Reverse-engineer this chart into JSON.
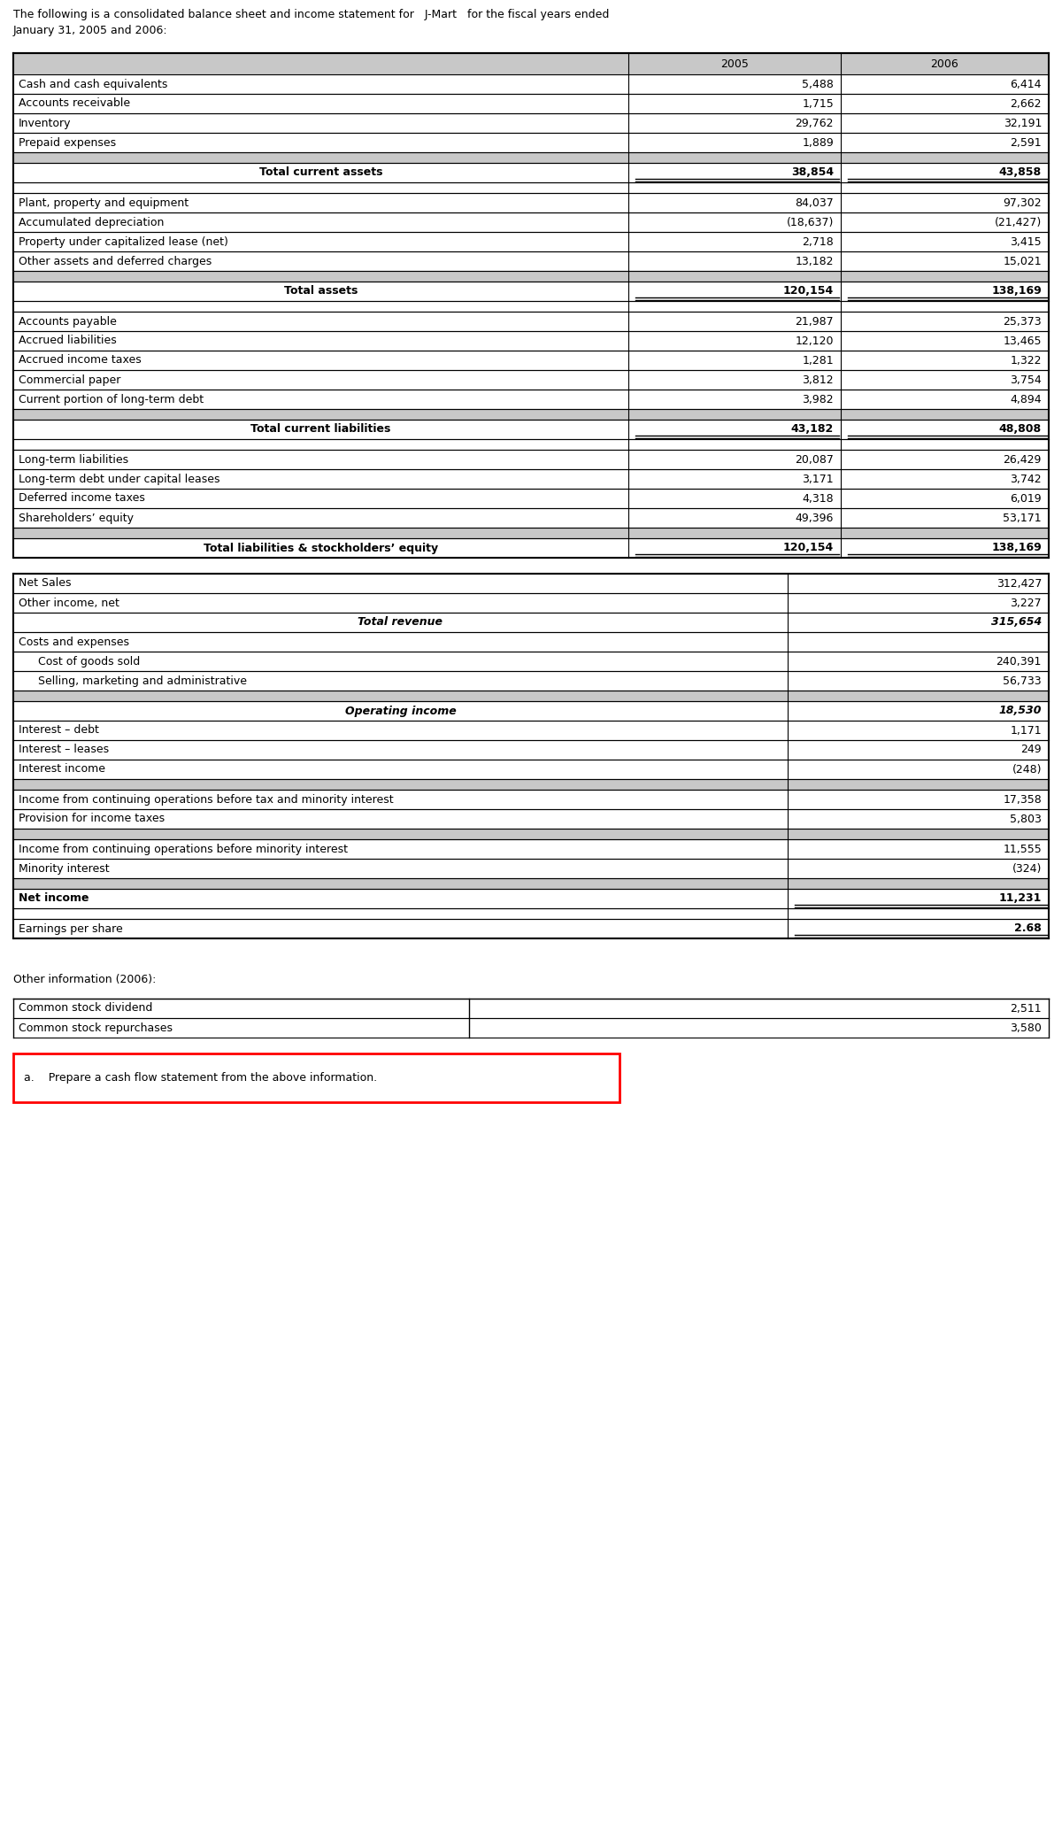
{
  "intro_text_line1": "The following is a consolidated balance sheet and income statement for   J-Mart   for the fiscal years ended",
  "intro_text_line2": "January 31, 2005 and 2006:",
  "balance_sheet_rows": [
    {
      "label": "",
      "v2005": "2005",
      "v2006": "2006",
      "type": "header"
    },
    {
      "label": "Cash and cash equivalents",
      "v2005": "5,488",
      "v2006": "6,414",
      "type": "normal"
    },
    {
      "label": "Accounts receivable",
      "v2005": "1,715",
      "v2006": "2,662",
      "type": "normal"
    },
    {
      "label": "Inventory",
      "v2005": "29,762",
      "v2006": "32,191",
      "type": "normal"
    },
    {
      "label": "Prepaid expenses",
      "v2005": "1,889",
      "v2006": "2,591",
      "type": "normal"
    },
    {
      "label": "",
      "v2005": "",
      "v2006": "",
      "type": "spacer_gray"
    },
    {
      "label": "Total current assets",
      "v2005": "38,854",
      "v2006": "43,858",
      "type": "subtotal"
    },
    {
      "label": "",
      "v2005": "",
      "v2006": "",
      "type": "spacer_white"
    },
    {
      "label": "Plant, property and equipment",
      "v2005": "84,037",
      "v2006": "97,302",
      "type": "normal"
    },
    {
      "label": "Accumulated depreciation",
      "v2005": "(18,637)",
      "v2006": "(21,427)",
      "type": "normal"
    },
    {
      "label": "Property under capitalized lease (net)",
      "v2005": "2,718",
      "v2006": "3,415",
      "type": "normal"
    },
    {
      "label": "Other assets and deferred charges",
      "v2005": "13,182",
      "v2006": "15,021",
      "type": "normal"
    },
    {
      "label": "",
      "v2005": "",
      "v2006": "",
      "type": "spacer_gray"
    },
    {
      "label": "Total assets",
      "v2005": "120,154",
      "v2006": "138,169",
      "type": "subtotal"
    },
    {
      "label": "",
      "v2005": "",
      "v2006": "",
      "type": "spacer_white"
    },
    {
      "label": "Accounts payable",
      "v2005": "21,987",
      "v2006": "25,373",
      "type": "normal"
    },
    {
      "label": "Accrued liabilities",
      "v2005": "12,120",
      "v2006": "13,465",
      "type": "normal"
    },
    {
      "label": "Accrued income taxes",
      "v2005": "1,281",
      "v2006": "1,322",
      "type": "normal"
    },
    {
      "label": "Commercial paper",
      "v2005": "3,812",
      "v2006": "3,754",
      "type": "normal"
    },
    {
      "label": "Current portion of long-term debt",
      "v2005": "3,982",
      "v2006": "4,894",
      "type": "normal"
    },
    {
      "label": "",
      "v2005": "",
      "v2006": "",
      "type": "spacer_gray"
    },
    {
      "label": "Total current liabilities",
      "v2005": "43,182",
      "v2006": "48,808",
      "type": "subtotal"
    },
    {
      "label": "",
      "v2005": "",
      "v2006": "",
      "type": "spacer_white"
    },
    {
      "label": "Long-term liabilities",
      "v2005": "20,087",
      "v2006": "26,429",
      "type": "normal"
    },
    {
      "label": "Long-term debt under capital leases",
      "v2005": "3,171",
      "v2006": "3,742",
      "type": "normal"
    },
    {
      "label": "Deferred income taxes",
      "v2005": "4,318",
      "v2006": "6,019",
      "type": "normal"
    },
    {
      "label": "Shareholders’ equity",
      "v2005": "49,396",
      "v2006": "53,171",
      "type": "normal"
    },
    {
      "label": "",
      "v2005": "",
      "v2006": "",
      "type": "spacer_gray"
    },
    {
      "label": "Total liabilities & stockholders’ equity",
      "v2005": "120,154",
      "v2006": "138,169",
      "type": "subtotal"
    }
  ],
  "income_rows": [
    {
      "label": "Net Sales",
      "value": "312,427",
      "type": "normal",
      "indent": 0
    },
    {
      "label": "Other income, net",
      "value": "3,227",
      "type": "normal",
      "indent": 0
    },
    {
      "label": "Total revenue",
      "value": "315,654",
      "type": "subtotal_italic",
      "indent": 0
    },
    {
      "label": "Costs and expenses",
      "value": "",
      "type": "normal",
      "indent": 0
    },
    {
      "label": "Cost of goods sold",
      "value": "240,391",
      "type": "normal",
      "indent": 1
    },
    {
      "label": "Selling, marketing and administrative",
      "value": "56,733",
      "type": "normal",
      "indent": 1
    },
    {
      "label": "",
      "value": "",
      "type": "spacer_gray"
    },
    {
      "label": "Operating income",
      "value": "18,530",
      "type": "subtotal_italic",
      "indent": 0
    },
    {
      "label": "Interest – debt",
      "value": "1,171",
      "type": "normal",
      "indent": 0
    },
    {
      "label": "Interest – leases",
      "value": "249",
      "type": "normal",
      "indent": 0
    },
    {
      "label": "Interest income",
      "value": "(248)",
      "type": "normal",
      "indent": 0
    },
    {
      "label": "",
      "value": "",
      "type": "spacer_gray"
    },
    {
      "label": "Income from continuing operations before tax and minority interest",
      "value": "17,358",
      "type": "normal",
      "indent": 0
    },
    {
      "label": "Provision for income taxes",
      "value": "5,803",
      "type": "normal",
      "indent": 0
    },
    {
      "label": "",
      "value": "",
      "type": "spacer_gray"
    },
    {
      "label": "Income from continuing operations before minority interest",
      "value": "11,555",
      "type": "normal",
      "indent": 0
    },
    {
      "label": "Minority interest",
      "value": "(324)",
      "type": "normal",
      "indent": 0
    },
    {
      "label": "",
      "value": "",
      "type": "spacer_gray"
    },
    {
      "label": "Net income",
      "value": "11,231",
      "type": "net_income",
      "indent": 0
    },
    {
      "label": "",
      "value": "",
      "type": "spacer_white"
    },
    {
      "label": "Earnings per share",
      "value": "2.68",
      "type": "eps",
      "indent": 0
    }
  ],
  "other_info_title": "Other information (2006):",
  "other_info_rows": [
    {
      "label": "Common stock dividend",
      "value": "2,511"
    },
    {
      "label": "Common stock repurchases",
      "value": "3,580"
    }
  ],
  "question": "a.    Prepare a cash flow statement from the above information.",
  "gray_color": "#c8c8c8",
  "white_color": "#ffffff",
  "border_color": "#000000",
  "red_color": "#ff0000"
}
